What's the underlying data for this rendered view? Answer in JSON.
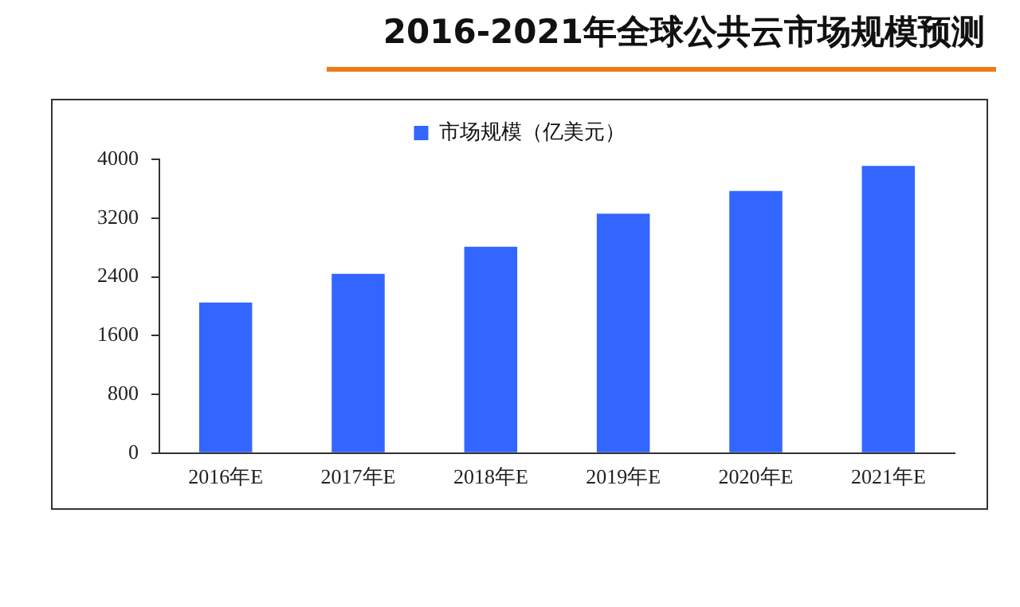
{
  "chart_data": {
    "type": "bar",
    "title": "2016-2021年全球公共云市场规模预测",
    "categories": [
      "2016年E",
      "2017年E",
      "2018年E",
      "2019年E",
      "2020年E",
      "2021年E"
    ],
    "series": [
      {
        "name": "市场规模（亿美元）",
        "color": "#3366ff",
        "values": [
          2050,
          2440,
          2810,
          3260,
          3570,
          3910
        ]
      }
    ],
    "ylim": [
      0,
      4000
    ],
    "yticks": [
      0,
      800,
      1600,
      2400,
      3200,
      4000
    ],
    "grid": false,
    "legend": "top"
  }
}
